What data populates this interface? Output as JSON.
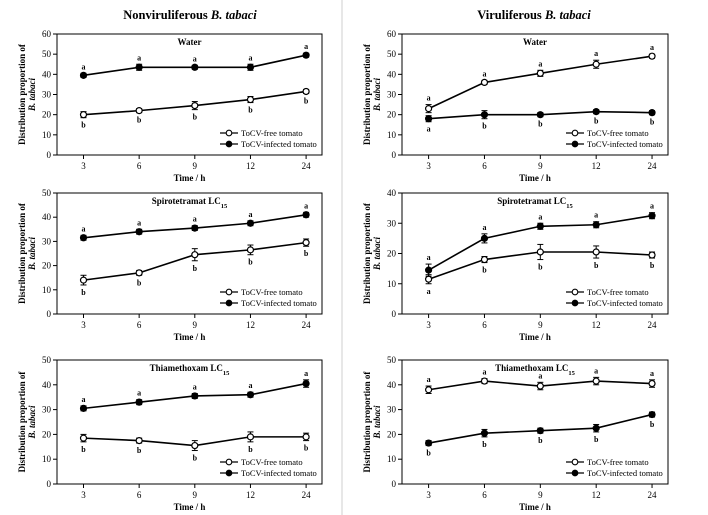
{
  "figure": {
    "columns": [
      "Nonviruliferous B. tabaci",
      "Viruliferous B. tabaci"
    ],
    "ylabel_line1": "Distribution proportion of",
    "ylabel_line2": "B. tabaci",
    "xlabel": "Time / h",
    "legend": [
      "ToCV-free tomato",
      "ToCV-infected tomato"
    ]
  },
  "chart_data": [
    {
      "type": "line",
      "column": 0,
      "row": 0,
      "title": "Water",
      "x": [
        "3",
        "6",
        "9",
        "12",
        "24"
      ],
      "ylim": [
        0,
        60
      ],
      "yticks": [
        0,
        10,
        20,
        30,
        40,
        50,
        60
      ],
      "series": [
        {
          "name": "ToCV-free tomato",
          "marker": "open",
          "values": [
            20,
            22,
            24.5,
            27.5,
            31.5
          ],
          "err": [
            1.5,
            1,
            2,
            1.5,
            1
          ],
          "letters": [
            "b",
            "b",
            "b",
            "b",
            "b"
          ]
        },
        {
          "name": "ToCV-infected tomato",
          "marker": "filled",
          "values": [
            39.5,
            43.5,
            43.5,
            43.5,
            49.5
          ],
          "err": [
            1,
            1.5,
            1,
            1.5,
            1
          ],
          "letters": [
            "a",
            "a",
            "a",
            "a",
            "a"
          ]
        }
      ]
    },
    {
      "type": "line",
      "column": 1,
      "row": 0,
      "title": "Water",
      "x": [
        "3",
        "6",
        "9",
        "12",
        "24"
      ],
      "ylim": [
        0,
        60
      ],
      "yticks": [
        0,
        10,
        20,
        30,
        40,
        50,
        60
      ],
      "series": [
        {
          "name": "ToCV-free tomato",
          "marker": "open",
          "values": [
            23,
            36,
            40.5,
            45,
            49
          ],
          "err": [
            2,
            1,
            1.5,
            2,
            1
          ],
          "letters": [
            "a",
            "a",
            "a",
            "a",
            "a"
          ]
        },
        {
          "name": "ToCV-infected tomato",
          "marker": "filled",
          "values": [
            18,
            20,
            20,
            21.5,
            21
          ],
          "err": [
            1.5,
            2,
            1,
            1,
            1
          ],
          "letters": [
            "a",
            "b",
            "b",
            "b",
            "b"
          ]
        }
      ]
    },
    {
      "type": "line",
      "column": 0,
      "row": 1,
      "title": "Spirotetramat LC",
      "title_sub": "15",
      "x": [
        "3",
        "6",
        "9",
        "12",
        "24"
      ],
      "ylim": [
        0,
        50
      ],
      "yticks": [
        0,
        10,
        20,
        30,
        40,
        50
      ],
      "series": [
        {
          "name": "ToCV-free tomato",
          "marker": "open",
          "values": [
            14,
            17,
            24.5,
            26.5,
            29.5
          ],
          "err": [
            2,
            1,
            2.5,
            2,
            1.5
          ],
          "letters": [
            "b",
            "b",
            "b",
            "b",
            "b"
          ]
        },
        {
          "name": "ToCV-infected tomato",
          "marker": "filled",
          "values": [
            31.5,
            34,
            35.5,
            37.5,
            41
          ],
          "err": [
            1,
            1,
            1,
            1,
            1
          ],
          "letters": [
            "a",
            "a",
            "a",
            "a",
            "a"
          ]
        }
      ]
    },
    {
      "type": "line",
      "column": 1,
      "row": 1,
      "title": "Spirotetramat LC",
      "title_sub": "15",
      "x": [
        "3",
        "6",
        "9",
        "12",
        "24"
      ],
      "ylim": [
        0,
        40
      ],
      "yticks": [
        0,
        10,
        20,
        30,
        40
      ],
      "series": [
        {
          "name": "ToCV-free tomato",
          "marker": "open",
          "values": [
            11.5,
            18,
            20.5,
            20.5,
            19.5
          ],
          "err": [
            1.5,
            1,
            2.5,
            2,
            1
          ],
          "letters": [
            "a",
            "b",
            "b",
            "b",
            "b"
          ]
        },
        {
          "name": "ToCV-infected tomato",
          "marker": "filled",
          "values": [
            14.5,
            25,
            29,
            29.5,
            32.5
          ],
          "err": [
            2,
            1.5,
            1,
            1,
            1
          ],
          "letters": [
            "a",
            "a",
            "a",
            "a",
            "a"
          ]
        }
      ]
    },
    {
      "type": "line",
      "column": 0,
      "row": 2,
      "title": "Thiamethoxam LC",
      "title_sub": "15",
      "x": [
        "3",
        "6",
        "9",
        "12",
        "24"
      ],
      "ylim": [
        0,
        50
      ],
      "yticks": [
        0,
        10,
        20,
        30,
        40,
        50
      ],
      "series": [
        {
          "name": "ToCV-free tomato",
          "marker": "open",
          "values": [
            18.5,
            17.5,
            15.5,
            19,
            19
          ],
          "err": [
            1.5,
            1,
            2,
            2,
            1.5
          ],
          "letters": [
            "b",
            "b",
            "b",
            "b",
            "b"
          ]
        },
        {
          "name": "ToCV-infected tomato",
          "marker": "filled",
          "values": [
            30.5,
            33,
            35.5,
            36,
            40.5
          ],
          "err": [
            1,
            1,
            1,
            1,
            1.5
          ],
          "letters": [
            "a",
            "a",
            "a",
            "a",
            "a"
          ]
        }
      ]
    },
    {
      "type": "line",
      "column": 1,
      "row": 2,
      "title": "Thiamethoxam LC",
      "title_sub": "15",
      "x": [
        "3",
        "6",
        "9",
        "12",
        "24"
      ],
      "ylim": [
        0,
        50
      ],
      "yticks": [
        0,
        10,
        20,
        30,
        40,
        50
      ],
      "series": [
        {
          "name": "ToCV-free tomato",
          "marker": "open",
          "values": [
            38,
            41.5,
            39.5,
            41.5,
            40.5
          ],
          "err": [
            1.5,
            1,
            1.5,
            1.5,
            1.5
          ],
          "letters": [
            "a",
            "a",
            "a",
            "a",
            "a"
          ]
        },
        {
          "name": "ToCV-infected tomato",
          "marker": "filled",
          "values": [
            16.5,
            20.5,
            21.5,
            22.5,
            28
          ],
          "err": [
            1,
            1.5,
            1,
            1.5,
            1
          ],
          "letters": [
            "b",
            "b",
            "b",
            "b",
            "b"
          ]
        }
      ]
    }
  ]
}
